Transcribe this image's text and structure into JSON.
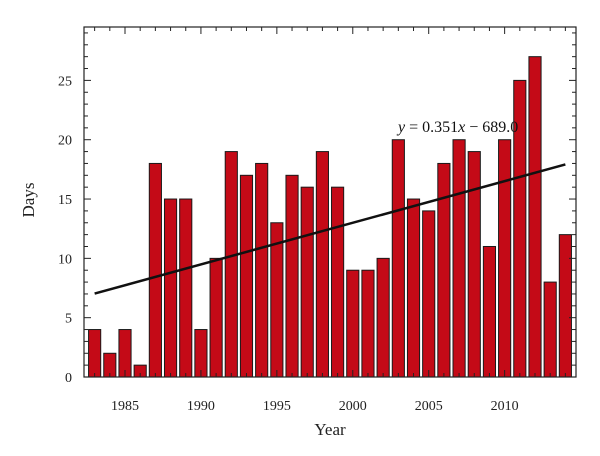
{
  "chart_data": {
    "type": "bar",
    "xlabel": "Year",
    "ylabel": "Days",
    "x": [
      1983,
      1984,
      1985,
      1986,
      1987,
      1988,
      1989,
      1990,
      1991,
      1992,
      1993,
      1994,
      1995,
      1996,
      1997,
      1998,
      1999,
      2000,
      2001,
      2002,
      2003,
      2004,
      2005,
      2006,
      2007,
      2008,
      2009,
      2010,
      2011,
      2012,
      2013,
      2014
    ],
    "values": [
      4,
      2,
      4,
      1,
      18,
      15,
      15,
      4,
      10,
      19,
      17,
      18,
      13,
      17,
      16,
      19,
      16,
      9,
      9,
      10,
      20,
      15,
      14,
      18,
      20,
      19,
      11,
      20,
      25,
      27,
      8,
      12
    ],
    "xlim": [
      1982.3,
      2014.7
    ],
    "ylim": [
      0,
      29.5
    ],
    "x_ticks": [
      1985,
      1990,
      1995,
      2000,
      2005,
      2010
    ],
    "y_ticks": [
      0,
      5,
      10,
      15,
      20,
      25
    ],
    "bar_color": "#c40a17",
    "trend_color": "#111111",
    "trendline": {
      "slope": 0.351,
      "intercept": -689.0
    },
    "annotation": {
      "x_label": "y",
      "eq_rest": " = 0.351",
      "x_var": "x",
      "tail": " − 689.0"
    }
  }
}
